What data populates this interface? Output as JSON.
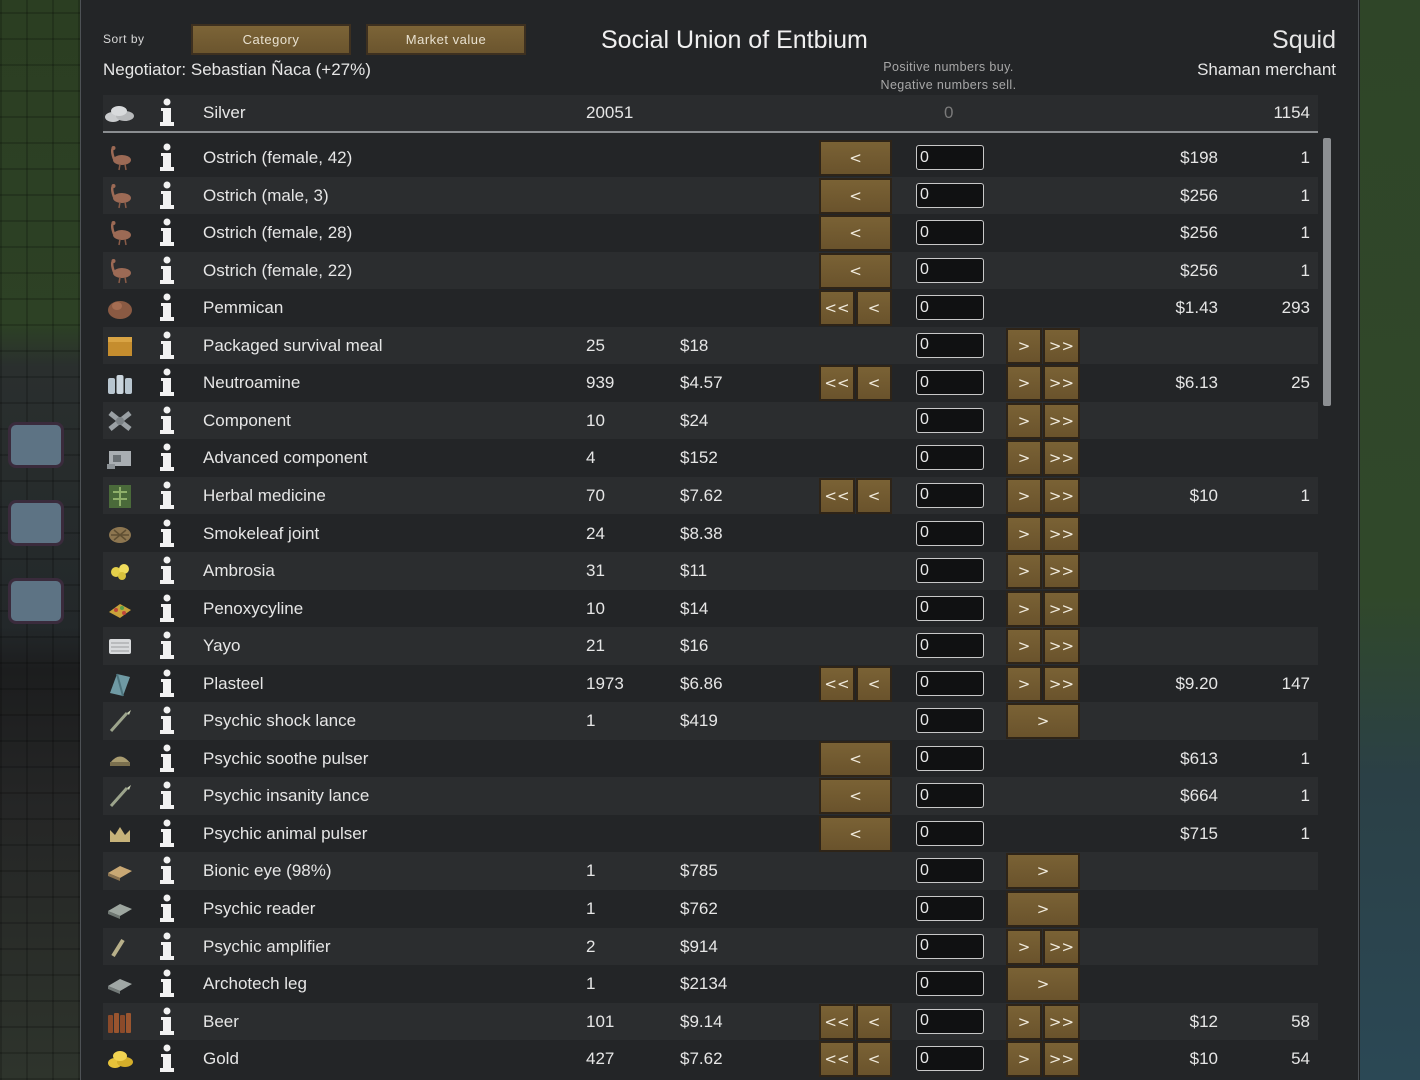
{
  "header": {
    "sort_by_label": "Sort by",
    "sort_category_label": "Category",
    "sort_market_label": "Market value",
    "negotiator": "Negotiator: Sebastian Ñaca (+27%)",
    "faction_name": "Social Union of Entbium",
    "hint_line1": "Positive numbers buy.",
    "hint_line2": "Negative numbers sell.",
    "trader_name": "Squid",
    "trader_kind": "Shaman merchant"
  },
  "silver": {
    "name": "Silver",
    "colony_count": "20051",
    "quantity": "0",
    "trader_count": "1154",
    "icon": "silver-icon"
  },
  "items": [
    {
      "name": "Ostrich (female, 42)",
      "icon": "ostrich-icon",
      "colony_count": "",
      "colony_price": "",
      "left": "single",
      "right": "none",
      "qty": "0",
      "trader_price": "$198",
      "trader_count": "1"
    },
    {
      "name": "Ostrich (male, 3)",
      "icon": "ostrich-icon",
      "colony_count": "",
      "colony_price": "",
      "left": "single",
      "right": "none",
      "qty": "0",
      "trader_price": "$256",
      "trader_count": "1"
    },
    {
      "name": "Ostrich (female, 28)",
      "icon": "ostrich-icon",
      "colony_count": "",
      "colony_price": "",
      "left": "single",
      "right": "none",
      "qty": "0",
      "trader_price": "$256",
      "trader_count": "1"
    },
    {
      "name": "Ostrich (female, 22)",
      "icon": "ostrich-icon",
      "colony_count": "",
      "colony_price": "",
      "left": "single",
      "right": "none",
      "qty": "0",
      "trader_price": "$256",
      "trader_count": "1"
    },
    {
      "name": "Pemmican",
      "icon": "pemmican-icon",
      "colony_count": "",
      "colony_price": "",
      "left": "double",
      "right": "none",
      "qty": "0",
      "trader_price": "$1.43",
      "trader_count": "293"
    },
    {
      "name": "Packaged survival meal",
      "icon": "meal-icon",
      "colony_count": "25",
      "colony_price": "$18",
      "left": "none",
      "right": "double",
      "qty": "0",
      "trader_price": "",
      "trader_count": ""
    },
    {
      "name": "Neutroamine",
      "icon": "neutroamine-icon",
      "colony_count": "939",
      "colony_price": "$4.57",
      "left": "double",
      "right": "double",
      "qty": "0",
      "trader_price": "$6.13",
      "trader_count": "25"
    },
    {
      "name": "Component",
      "icon": "component-icon",
      "colony_count": "10",
      "colony_price": "$24",
      "left": "none",
      "right": "double",
      "qty": "0",
      "trader_price": "",
      "trader_count": ""
    },
    {
      "name": "Advanced component",
      "icon": "advanced-component-icon",
      "colony_count": "4",
      "colony_price": "$152",
      "left": "none",
      "right": "double",
      "qty": "0",
      "trader_price": "",
      "trader_count": ""
    },
    {
      "name": "Herbal medicine",
      "icon": "herbal-medicine-icon",
      "colony_count": "70",
      "colony_price": "$7.62",
      "left": "double",
      "right": "double",
      "qty": "0",
      "trader_price": "$10",
      "trader_count": "1"
    },
    {
      "name": "Smokeleaf joint",
      "icon": "smokeleaf-joint-icon",
      "colony_count": "24",
      "colony_price": "$8.38",
      "left": "none",
      "right": "double",
      "qty": "0",
      "trader_price": "",
      "trader_count": ""
    },
    {
      "name": "Ambrosia",
      "icon": "ambrosia-icon",
      "colony_count": "31",
      "colony_price": "$11",
      "left": "none",
      "right": "double",
      "qty": "0",
      "trader_price": "",
      "trader_count": ""
    },
    {
      "name": "Penoxycyline",
      "icon": "penoxycyline-icon",
      "colony_count": "10",
      "colony_price": "$14",
      "left": "none",
      "right": "double",
      "qty": "0",
      "trader_price": "",
      "trader_count": ""
    },
    {
      "name": "Yayo",
      "icon": "yayo-icon",
      "colony_count": "21",
      "colony_price": "$16",
      "left": "none",
      "right": "double",
      "qty": "0",
      "trader_price": "",
      "trader_count": ""
    },
    {
      "name": "Plasteel",
      "icon": "plasteel-icon",
      "colony_count": "1973",
      "colony_price": "$6.86",
      "left": "double",
      "right": "double",
      "qty": "0",
      "trader_price": "$9.20",
      "trader_count": "147"
    },
    {
      "name": "Psychic shock lance",
      "icon": "lance-icon",
      "colony_count": "1",
      "colony_price": "$419",
      "left": "none",
      "right": "single",
      "qty": "0",
      "trader_price": "",
      "trader_count": ""
    },
    {
      "name": "Psychic soothe pulser",
      "icon": "pulser-icon",
      "colony_count": "",
      "colony_price": "",
      "left": "single",
      "right": "none",
      "qty": "0",
      "trader_price": "$613",
      "trader_count": "1"
    },
    {
      "name": "Psychic insanity lance",
      "icon": "lance-icon",
      "colony_count": "",
      "colony_price": "",
      "left": "single",
      "right": "none",
      "qty": "0",
      "trader_price": "$664",
      "trader_count": "1"
    },
    {
      "name": "Psychic animal pulser",
      "icon": "crown-icon",
      "colony_count": "",
      "colony_price": "",
      "left": "single",
      "right": "none",
      "qty": "0",
      "trader_price": "$715",
      "trader_count": "1"
    },
    {
      "name": "Bionic eye (98%)",
      "icon": "bionic-eye-icon",
      "colony_count": "1",
      "colony_price": "$785",
      "left": "none",
      "right": "single",
      "qty": "0",
      "trader_price": "",
      "trader_count": ""
    },
    {
      "name": "Psychic reader",
      "icon": "reader-icon",
      "colony_count": "1",
      "colony_price": "$762",
      "left": "none",
      "right": "single",
      "qty": "0",
      "trader_price": "",
      "trader_count": ""
    },
    {
      "name": "Psychic amplifier",
      "icon": "amplifier-icon",
      "colony_count": "2",
      "colony_price": "$914",
      "left": "none",
      "right": "double",
      "qty": "0",
      "trader_price": "",
      "trader_count": ""
    },
    {
      "name": "Archotech leg",
      "icon": "archotech-leg-icon",
      "colony_count": "1",
      "colony_price": "$2134",
      "left": "none",
      "right": "single",
      "qty": "0",
      "trader_price": "",
      "trader_count": ""
    },
    {
      "name": "Beer",
      "icon": "beer-icon",
      "colony_count": "101",
      "colony_price": "$9.14",
      "left": "double",
      "right": "double",
      "qty": "0",
      "trader_price": "$12",
      "trader_count": "58"
    },
    {
      "name": "Gold",
      "icon": "gold-icon",
      "colony_count": "427",
      "colony_price": "$7.62",
      "left": "double",
      "right": "double",
      "qty": "0",
      "trader_price": "$10",
      "trader_count": "54"
    }
  ],
  "button_labels": {
    "ll": "<<",
    "l": "<",
    "r": ">",
    "rr": ">>"
  },
  "info_icon": "info-icon",
  "colors": {
    "button": "#7a6235",
    "panel": "#232527",
    "row_alt": "#2b2d2f"
  }
}
